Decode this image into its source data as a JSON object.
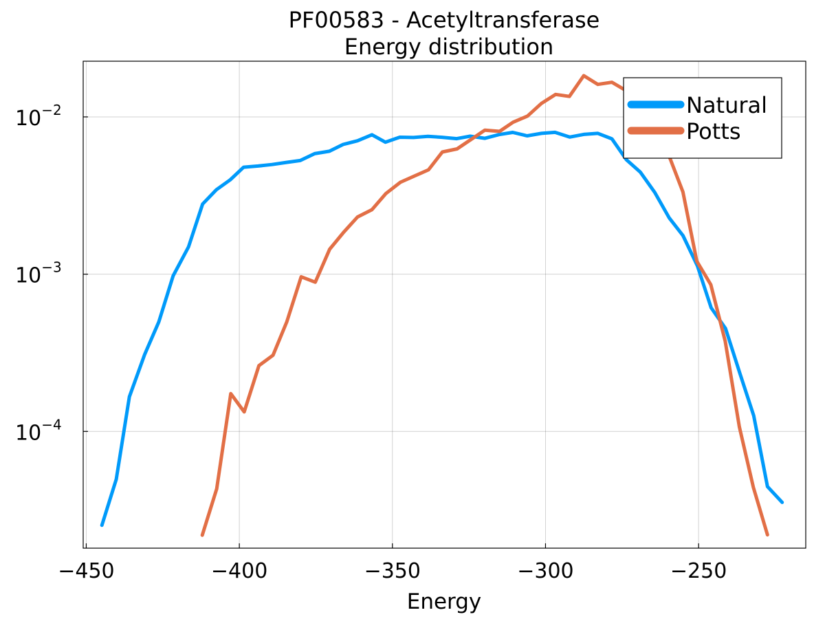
{
  "chart_data": {
    "type": "line",
    "title": "PF00583 - Acetyltransferase",
    "subtitle": "Energy distribution",
    "xlabel": "Energy",
    "ylabel": "",
    "xscale": "linear",
    "yscale": "log",
    "xlim": [
      -451,
      -215
    ],
    "ylim": [
      1.81e-05,
      0.0226
    ],
    "xticks": [
      -450,
      -400,
      -350,
      -300,
      -250
    ],
    "xtick_labels": [
      "−450",
      "−400",
      "−350",
      "−300",
      "−250"
    ],
    "yticks": [
      0.0001,
      0.001,
      0.01
    ],
    "ytick_labels": [
      {
        "base": "10",
        "exp": "−4"
      },
      {
        "base": "10",
        "exp": "−3"
      },
      {
        "base": "10",
        "exp": "−2"
      }
    ],
    "grid": true,
    "legend_position": "top-right",
    "series": [
      {
        "name": "Natural",
        "color": "#009AFA",
        "x": [
          -444.9,
          -440.2,
          -435.9,
          -430.9,
          -426.3,
          -421.6,
          -416.6,
          -412.0,
          -407.5,
          -403.0,
          -398.6,
          -393.9,
          -389.3,
          -384.6,
          -380.1,
          -375.4,
          -370.6,
          -366.1,
          -361.4,
          -356.7,
          -352.3,
          -347.6,
          -343.1,
          -338.4,
          -333.8,
          -329.0,
          -324.6,
          -319.8,
          -315.2,
          -310.7,
          -306.0,
          -301.3,
          -296.9,
          -292.1,
          -287.5,
          -282.9,
          -278.3,
          -273.6,
          -269.0,
          -264.3,
          -259.6,
          -255.1,
          -250.4,
          -245.9,
          -241.2,
          -236.6,
          -232.0,
          -227.5,
          -222.7
        ],
        "y": [
          2.53e-05,
          4.96e-05,
          0.000166,
          0.000309,
          0.000497,
          0.000977,
          0.00149,
          0.00279,
          0.00344,
          0.00398,
          0.00479,
          0.00487,
          0.00498,
          0.00514,
          0.00528,
          0.00584,
          0.00605,
          0.00668,
          0.00705,
          0.0077,
          0.00691,
          0.00743,
          0.0074,
          0.00752,
          0.00742,
          0.00727,
          0.00754,
          0.00731,
          0.00772,
          0.00797,
          0.00758,
          0.00786,
          0.00798,
          0.00744,
          0.00774,
          0.00786,
          0.00725,
          0.00535,
          0.00445,
          0.00331,
          0.00228,
          0.00176,
          0.00113,
          0.000611,
          0.000452,
          0.000237,
          0.000126,
          4.46e-05,
          3.54e-05
        ]
      },
      {
        "name": "Potts",
        "color": "#E26F46",
        "x": [
          -412.1,
          -407.4,
          -402.8,
          -398.4,
          -393.6,
          -389.0,
          -384.5,
          -379.8,
          -375.2,
          -370.5,
          -366.0,
          -361.4,
          -356.7,
          -352.1,
          -347.4,
          -342.8,
          -338.2,
          -333.7,
          -328.9,
          -324.4,
          -319.8,
          -315.0,
          -310.6,
          -305.9,
          -301.3,
          -296.7,
          -292.2,
          -287.5,
          -282.9,
          -278.3,
          -273.7,
          -269.0,
          -264.4,
          -259.8,
          -255.1,
          -250.6,
          -246.0,
          -241.3,
          -236.7,
          -232.1,
          -227.5
        ],
        "y": [
          2.19e-05,
          4.31e-05,
          0.000174,
          0.000133,
          0.000262,
          0.000305,
          0.000498,
          0.000963,
          0.000889,
          0.00144,
          0.00184,
          0.00231,
          0.00257,
          0.00326,
          0.00384,
          0.00421,
          0.00461,
          0.00598,
          0.00626,
          0.00717,
          0.00824,
          0.00809,
          0.00925,
          0.01012,
          0.0122,
          0.0139,
          0.0135,
          0.0183,
          0.0161,
          0.0166,
          0.0147,
          0.0109,
          0.0087,
          0.00575,
          0.00333,
          0.00121,
          0.000857,
          0.000374,
          0.000107,
          4.41e-05,
          2.2e-05
        ]
      }
    ]
  }
}
